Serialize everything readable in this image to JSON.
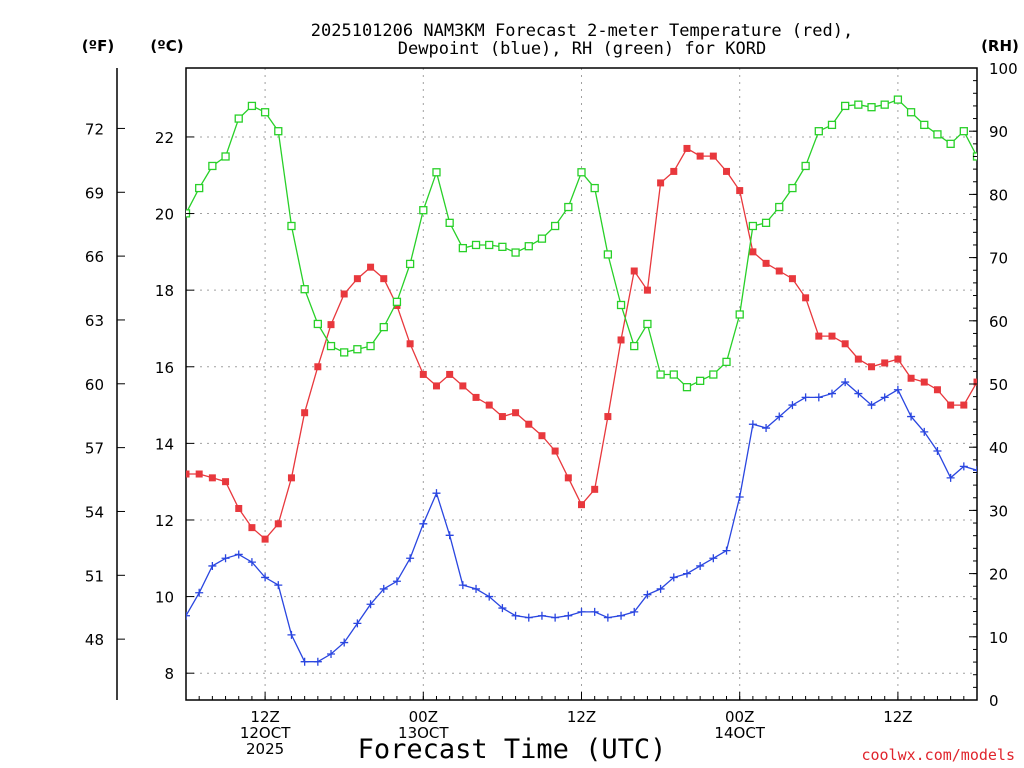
{
  "chart_data": {
    "type": "line",
    "title_lines": [
      "2025101206 NAM3KM Forecast 2-meter Temperature (red),",
      "Dewpoint (blue), RH (green) for KORD"
    ],
    "units": {
      "f": "(ºF)",
      "c": "(ºC)",
      "rh": "(RH)"
    },
    "xlabel": "Forecast Time (UTC)",
    "credit": "coolwx.com/models",
    "xlim": [
      0,
      60
    ],
    "ylim_c": [
      7.3,
      23.8
    ],
    "ylim_rh": [
      0,
      100
    ],
    "grid": true,
    "yticks_c": [
      "8",
      "10",
      "12",
      "14",
      "16",
      "18",
      "20",
      "22"
    ],
    "yticks_f": [
      "48",
      "51",
      "54",
      "57",
      "60",
      "63",
      "66",
      "69",
      "72"
    ],
    "yticks_rh": [
      "0",
      "10",
      "20",
      "30",
      "40",
      "50",
      "60",
      "70",
      "80",
      "90",
      "100"
    ],
    "xticks": [
      {
        "hour": 6,
        "lines": [
          "12Z",
          "12OCT",
          "2025"
        ]
      },
      {
        "hour": 18,
        "lines": [
          "00Z",
          "13OCT"
        ]
      },
      {
        "hour": 30,
        "lines": [
          "12Z"
        ]
      },
      {
        "hour": 42,
        "lines": [
          "00Z",
          "14OCT"
        ]
      },
      {
        "hour": 54,
        "lines": [
          "12Z"
        ]
      }
    ],
    "x": [
      0,
      1,
      2,
      3,
      4,
      5,
      6,
      7,
      8,
      9,
      10,
      11,
      12,
      13,
      14,
      15,
      16,
      17,
      18,
      19,
      20,
      21,
      22,
      23,
      24,
      25,
      26,
      27,
      28,
      29,
      30,
      31,
      32,
      33,
      34,
      35,
      36,
      37,
      38,
      39,
      40,
      41,
      42,
      43,
      44,
      45,
      46,
      47,
      48,
      49,
      50,
      51,
      52,
      53,
      54,
      55,
      56,
      57,
      58,
      59,
      60
    ],
    "series": [
      {
        "name": "2-meter Temperature (°C)",
        "color": "#e8383d",
        "marker": "filled-square",
        "axis": "c",
        "values": [
          13.2,
          13.2,
          13.1,
          13.0,
          12.3,
          11.8,
          11.5,
          11.9,
          13.1,
          14.8,
          16.0,
          17.1,
          17.9,
          18.3,
          18.6,
          18.3,
          17.6,
          16.6,
          15.8,
          15.5,
          15.8,
          15.5,
          15.2,
          15.0,
          14.7,
          14.8,
          14.5,
          14.2,
          13.8,
          13.1,
          12.4,
          12.8,
          14.7,
          16.7,
          18.5,
          18.0,
          20.8,
          21.1,
          21.7,
          21.5,
          21.5,
          21.1,
          20.6,
          19.0,
          18.7,
          18.5,
          18.3,
          17.8,
          16.8,
          16.8,
          16.6,
          16.2,
          16.0,
          16.1,
          16.2,
          15.7,
          15.6,
          15.4,
          15.0,
          15.0,
          15.6
        ]
      },
      {
        "name": "Dewpoint (°C)",
        "color": "#2a46e0",
        "marker": "plus",
        "axis": "c",
        "values": [
          9.5,
          10.1,
          10.8,
          11.0,
          11.1,
          10.9,
          10.5,
          10.3,
          9.0,
          8.3,
          8.3,
          8.5,
          8.8,
          9.3,
          9.8,
          10.2,
          10.4,
          11.0,
          11.9,
          12.7,
          11.6,
          10.3,
          10.2,
          10.0,
          9.7,
          9.5,
          9.45,
          9.5,
          9.45,
          9.5,
          9.6,
          9.6,
          9.45,
          9.5,
          9.6,
          10.05,
          10.2,
          10.5,
          10.6,
          10.8,
          11.0,
          11.2,
          12.6,
          14.5,
          14.4,
          14.7,
          15.0,
          15.2,
          15.2,
          15.3,
          15.6,
          15.3,
          15.0,
          15.2,
          15.4,
          14.7,
          14.3,
          13.8,
          13.1,
          13.4,
          13.3
        ]
      },
      {
        "name": "RH (%)",
        "color": "#28d028",
        "marker": "open-square",
        "axis": "rh",
        "values": [
          77,
          81,
          84.5,
          86,
          92,
          94,
          93,
          90,
          75,
          65,
          59.5,
          56,
          55,
          55.5,
          56,
          59,
          63,
          69,
          77.5,
          83.5,
          75.5,
          71.5,
          72,
          72,
          71.7,
          70.8,
          71.8,
          73,
          75,
          78,
          83.5,
          81,
          70.5,
          62.5,
          56,
          59.5,
          51.5,
          51.5,
          49.5,
          50.5,
          51.5,
          53.5,
          61,
          75,
          75.5,
          78,
          81,
          84.5,
          90,
          91,
          94,
          94.2,
          93.8,
          94.2,
          95,
          93,
          91,
          89.5,
          88,
          90,
          86
        ]
      }
    ]
  }
}
